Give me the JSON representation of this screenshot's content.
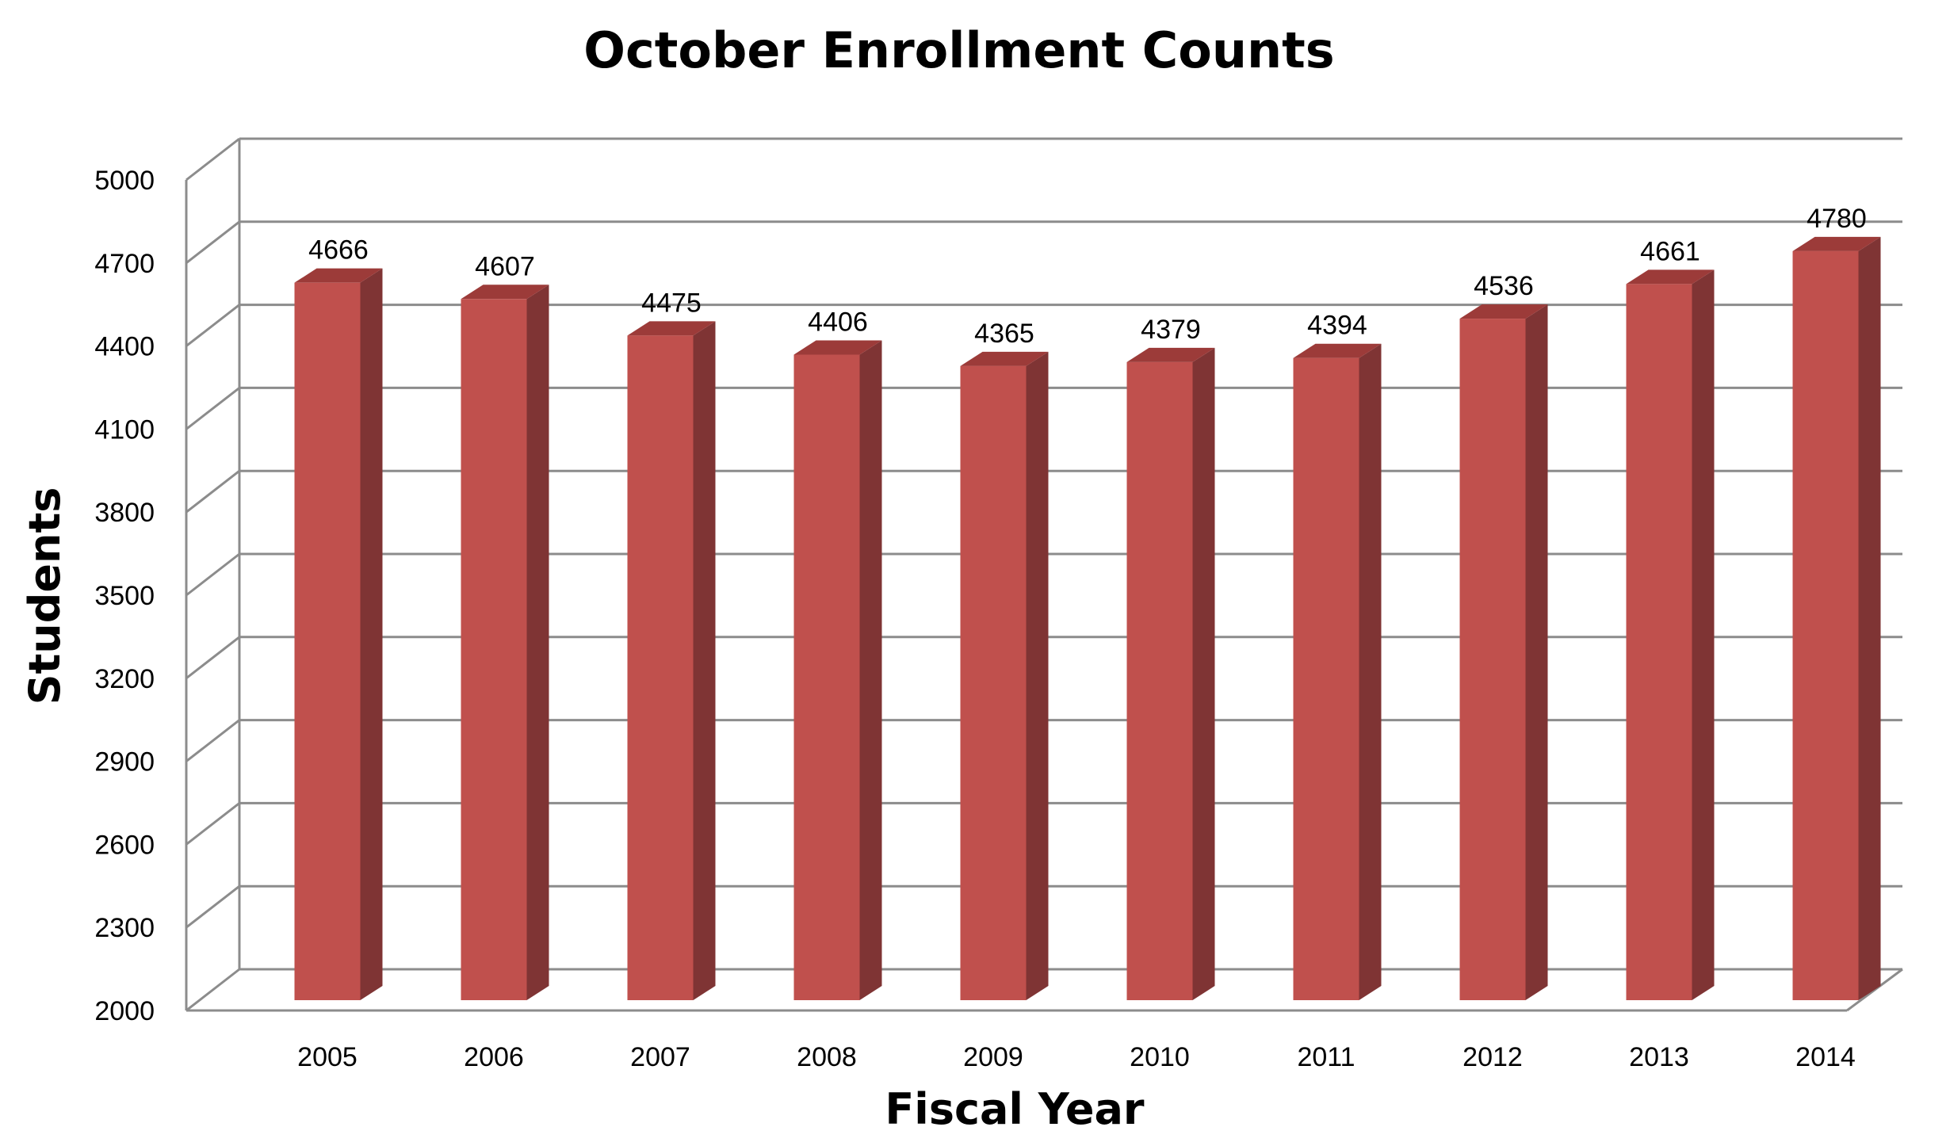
{
  "chart_data": {
    "type": "bar",
    "title": "October Enrollment Counts",
    "xlabel": "Fiscal Year",
    "ylabel": "Students",
    "categories": [
      "2005",
      "2006",
      "2007",
      "2008",
      "2009",
      "2010",
      "2011",
      "2012",
      "2013",
      "2014"
    ],
    "values": [
      4666,
      4607,
      4475,
      4406,
      4365,
      4379,
      4394,
      4536,
      4661,
      4780
    ],
    "ylim": [
      2000,
      5000
    ],
    "yticks": [
      2000,
      2300,
      2600,
      2900,
      3200,
      3500,
      3800,
      4100,
      4400,
      4700,
      5000
    ],
    "grid": true,
    "style": "3d",
    "colors": {
      "bar_front": "#c0504d",
      "bar_side": "#7f3434",
      "bar_top": "#9c3b39",
      "grid": "#8c8c8c"
    }
  }
}
